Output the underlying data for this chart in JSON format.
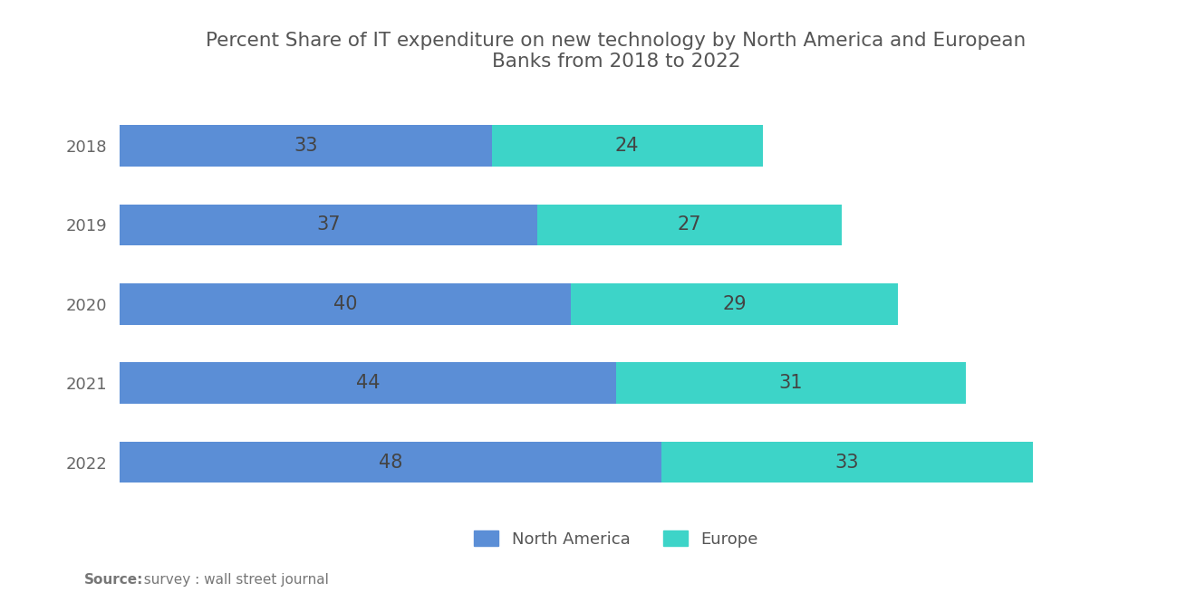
{
  "title": "Percent Share of IT expenditure on new technology by North America and European\nBanks from 2018 to 2022",
  "years": [
    "2022",
    "2021",
    "2020",
    "2019",
    "2018"
  ],
  "north_america": [
    48,
    44,
    40,
    37,
    33
  ],
  "europe": [
    33,
    31,
    29,
    27,
    24
  ],
  "color_north_america": "#5B8ED6",
  "color_europe": "#3DD4C8",
  "background_color": "#ffffff",
  "bar_height": 0.52,
  "label_fontsize": 15,
  "label_color": "#444444",
  "title_fontsize": 15.5,
  "title_color": "#555555",
  "tick_fontsize": 13,
  "tick_color": "#666666",
  "legend_fontsize": 13,
  "legend_label_color": "#555555",
  "source_bold": "Source:",
  "source_rest": "  survey : wall street journal",
  "source_fontsize": 11,
  "source_color": "#777777",
  "xlim": [
    0,
    88
  ]
}
